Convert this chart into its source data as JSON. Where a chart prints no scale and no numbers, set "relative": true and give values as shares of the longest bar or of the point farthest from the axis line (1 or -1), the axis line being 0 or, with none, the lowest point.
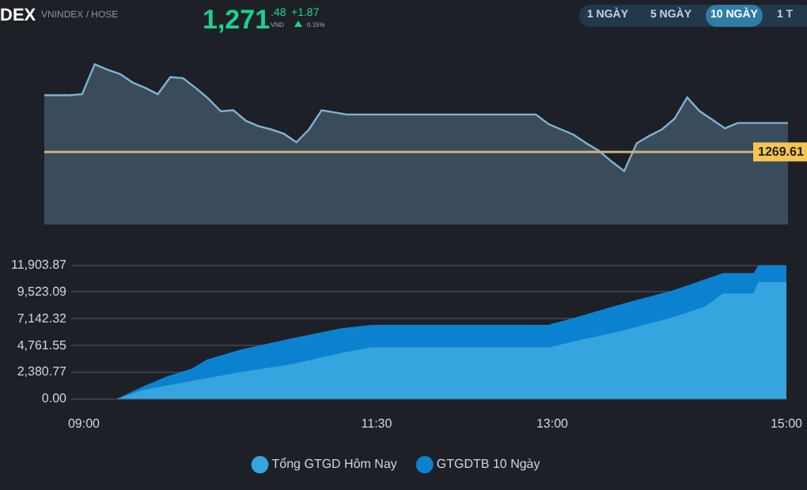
{
  "chart_data": [
    {
      "type": "other",
      "title": "DEX",
      "subtitle": "VNINDEX / HOSE",
      "annotations": [
        "1,271",
        ".48",
        "VND",
        "+1.87",
        "0.15%",
        "1 NGÀY",
        "5 NGÀY",
        "10 NGÀY",
        "1 T"
      ]
    },
    {
      "type": "area",
      "relative": true,
      "categories": [
        null,
        null,
        null,
        null,
        null,
        null,
        null,
        null,
        null,
        null,
        null,
        null,
        null,
        null,
        null,
        null,
        null,
        null,
        null,
        null,
        null,
        null,
        null,
        null,
        null,
        null,
        null,
        null,
        null,
        null,
        null,
        null,
        null,
        null,
        null,
        null,
        null,
        null,
        null,
        null,
        null,
        null,
        null,
        null,
        null,
        null,
        null,
        null,
        null,
        null,
        null,
        null,
        null,
        null,
        null,
        null,
        null,
        null,
        null,
        null
      ],
      "series": [
        {
          "color": "#7fb3d5",
          "values": [
            0.71,
            0.71,
            0.71,
            0.72,
            1,
            0.95,
            0.91,
            0.83,
            0.78,
            0.72,
            0.88,
            0.87,
            0.78,
            0.68,
            0.56,
            0.57,
            0.47,
            0.42,
            0.39,
            0.35,
            0.27,
            0.39,
            0.57,
            0.55,
            0.53,
            0.53,
            0.53,
            0.53,
            0.53,
            0.53,
            0.53,
            0.53,
            0.53,
            0.53,
            0.53,
            0.53,
            0.53,
            0.53,
            0.53,
            0.53,
            0.44,
            0.39,
            0.34,
            0.26,
            0.19,
            0.09,
            0,
            0.26,
            0.33,
            0.39,
            0.49,
            0.69,
            0.56,
            0.48,
            0.4,
            0.45,
            0.45,
            0.45,
            0.45,
            0.45
          ]
        }
      ],
      "ref_lines": [
        {
          "axis": "y",
          "value": 0.18,
          "color": "#c8b27a"
        }
      ],
      "annotations": [
        "1269.61"
      ],
      "grid": false,
      "legend": false
    },
    {
      "type": "area",
      "xlim": [
        9,
        15
      ],
      "xticks": [
        {
          "value": 9,
          "label": "09:00"
        },
        {
          "value": 11.5,
          "label": "11:30"
        },
        {
          "value": 13,
          "label": "13:00"
        },
        {
          "value": 15,
          "label": "15:00"
        }
      ],
      "ylim": [
        0,
        11903.87
      ],
      "yticks": [
        {
          "value": 0,
          "label": "0.00"
        },
        {
          "value": 2380.77,
          "label": "2,380.77"
        },
        {
          "value": 4761.55,
          "label": "4,761.55"
        },
        {
          "value": 7142.32,
          "label": "7,142.32"
        },
        {
          "value": 9523.09,
          "label": "9,523.09"
        },
        {
          "value": 11903.87,
          "label": "11,903.87"
        }
      ],
      "series": [
        {
          "name": "Tổng GTGD Hôm Nay",
          "color": "#35a4df",
          "x": [
            9,
            9.28,
            9.5,
            9.92,
            10.34,
            10.78,
            11.2,
            11.46,
            11.5,
            12.97,
            13.18,
            13.61,
            14.04,
            14.3,
            14.46,
            14.72,
            14.76,
            15
          ],
          "values": [
            0,
            0,
            800,
            1600,
            2400,
            3100,
            4100,
            4600,
            4600,
            4600,
            5100,
            6100,
            7300,
            8200,
            9400,
            9400,
            10400,
            10400
          ]
        },
        {
          "name": "GTGDTB 10 Ngày",
          "color": "#0a82d0",
          "x": [
            9,
            9.28,
            9.5,
            9.71,
            9.92,
            10.05,
            10.34,
            10.78,
            11.2,
            11.46,
            11.5,
            12.97,
            13.0,
            13.18,
            13.61,
            14.04,
            14.46,
            14.72,
            14.76,
            15
          ],
          "values": [
            0,
            0,
            1100,
            2000,
            2700,
            3500,
            4400,
            5400,
            6300,
            6600,
            6600,
            6600,
            6700,
            7200,
            8500,
            9700,
            11200,
            11200,
            11900,
            11900
          ]
        }
      ],
      "grid": "y",
      "legend": "bottom"
    }
  ]
}
